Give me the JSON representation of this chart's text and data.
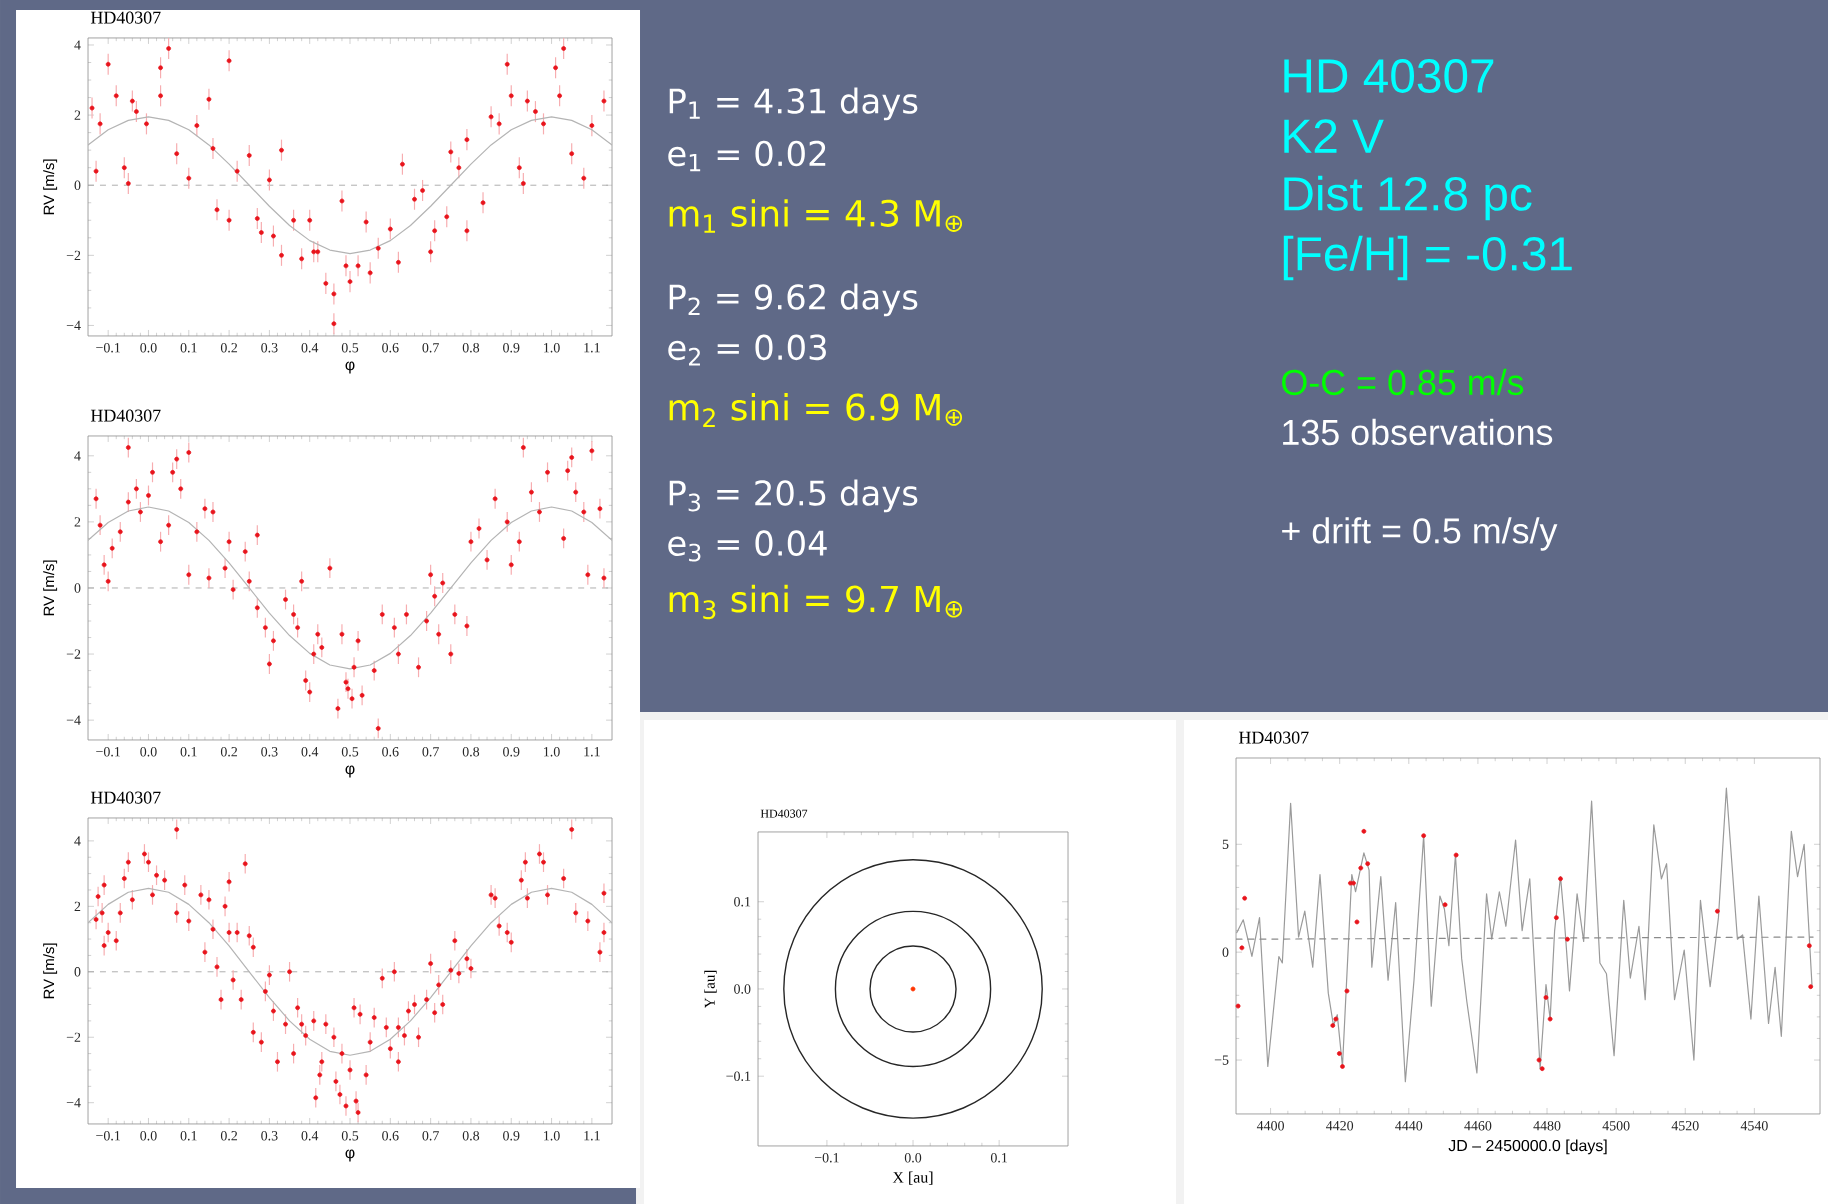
{
  "chart_data": [
    {
      "type": "scatter",
      "title": "HD40307",
      "xlabel": "φ",
      "ylabel": "RV [m/s]",
      "xlim": [
        -0.15,
        1.15
      ],
      "ylim": [
        -4.3,
        4.2
      ],
      "xticks": [
        {
          "value": -0.1,
          "label": "−0.1"
        },
        {
          "value": 0,
          "label": "0.0"
        },
        {
          "value": 0.1,
          "label": "0.1"
        },
        {
          "value": 0.2,
          "label": "0.2"
        },
        {
          "value": 0.3,
          "label": "0.3"
        },
        {
          "value": 0.4,
          "label": "0.4"
        },
        {
          "value": 0.5,
          "label": "0.5"
        },
        {
          "value": 0.6,
          "label": "0.6"
        },
        {
          "value": 0.7,
          "label": "0.7"
        },
        {
          "value": 0.8,
          "label": "0.8"
        },
        {
          "value": 0.9,
          "label": "0.9"
        },
        {
          "value": 1.0,
          "label": "1.0"
        },
        {
          "value": 1.1,
          "label": "1.1"
        }
      ],
      "yticks": [
        {
          "value": -4,
          "label": "−4"
        },
        {
          "value": -2,
          "label": "−2"
        },
        0,
        2,
        4
      ],
      "ref_lines": [
        {
          "axis": "y",
          "value": 0,
          "color": "#999999",
          "line_style": "dashed"
        }
      ],
      "series": [
        {
          "type": "scatter",
          "marker": "circle",
          "color": "#e8141c",
          "x": [
            -0.14,
            -0.13,
            -0.12,
            -0.1,
            -0.08,
            -0.06,
            -0.05,
            -0.04,
            -0.03,
            -0.005,
            0.03,
            0.03,
            0.05,
            0.07,
            0.1,
            0.12,
            0.15,
            0.16,
            0.17,
            0.2,
            0.2,
            0.22,
            0.25,
            0.27,
            0.28,
            0.3,
            0.31,
            0.33,
            0.33,
            0.36,
            0.38,
            0.4,
            0.41,
            0.42,
            0.44,
            0.46,
            0.46,
            0.48,
            0.49,
            0.5,
            0.52,
            0.54,
            0.55,
            0.57,
            0.6,
            0.62,
            0.63,
            0.66,
            0.68,
            0.7,
            0.71,
            0.74,
            0.75,
            0.77,
            0.79,
            0.79,
            0.83,
            0.85,
            0.87,
            0.89,
            0.9,
            0.92,
            0.93,
            0.94,
            0.96,
            0.98,
            1.01,
            1.02,
            1.03,
            1.05,
            1.08,
            1.1,
            1.13
          ],
          "values": [
            2.2,
            0.4,
            1.75,
            3.45,
            2.55,
            0.5,
            0.05,
            2.4,
            2.1,
            1.75,
            3.35,
            2.55,
            3.9,
            0.9,
            0.2,
            1.7,
            2.45,
            1.05,
            -0.7,
            3.55,
            -1.0,
            0.4,
            0.85,
            -0.95,
            -1.35,
            0.15,
            -1.45,
            -2.0,
            1.0,
            -1.0,
            -2.1,
            -1.0,
            -1.9,
            -1.9,
            -2.8,
            -3.1,
            -3.95,
            -0.45,
            -2.3,
            -2.75,
            -2.3,
            -1.05,
            -2.5,
            -1.8,
            -1.25,
            -2.2,
            0.6,
            -0.4,
            -0.15,
            -1.9,
            -1.3,
            -0.9,
            0.95,
            0.5,
            -1.3,
            1.3,
            -0.5,
            1.95,
            1.75,
            3.45,
            2.55,
            0.5,
            0.05,
            2.4,
            2.1,
            1.75,
            3.35,
            2.55,
            3.9,
            0.9,
            0.2,
            1.7,
            2.4
          ],
          "errors": [
            0.3,
            0.3,
            0.3,
            0.3,
            0.3,
            0.3,
            0.3,
            0.3,
            0.3,
            0.3,
            0.3,
            0.3,
            0.3,
            0.3,
            0.3,
            0.3,
            0.3,
            0.3,
            0.3,
            0.3,
            0.3,
            0.3,
            0.3,
            0.3,
            0.3,
            0.3,
            0.3,
            0.3,
            0.3,
            0.3,
            0.3,
            0.3,
            0.3,
            0.3,
            0.3,
            0.3,
            0.3,
            0.3,
            0.3,
            0.3,
            0.3,
            0.3,
            0.3,
            0.3,
            0.3,
            0.3,
            0.3,
            0.3,
            0.3,
            0.3,
            0.3,
            0.3,
            0.3,
            0.3,
            0.3,
            0.3,
            0.3,
            0.3,
            0.3,
            0.3,
            0.3,
            0.3,
            0.3,
            0.3,
            0.3,
            0.3,
            0.3,
            0.3,
            0.3,
            0.3,
            0.3,
            0.3,
            0.3
          ]
        },
        {
          "type": "line",
          "marker": "none",
          "color": "#b4b4b4",
          "x": [
            -0.15,
            -0.1,
            -0.05,
            0,
            0.05,
            0.1,
            0.15,
            0.2,
            0.25,
            0.3,
            0.35,
            0.4,
            0.45,
            0.5,
            0.55,
            0.6,
            0.65,
            0.7,
            0.75,
            0.8,
            0.85,
            0.9,
            0.95,
            1.0,
            1.05,
            1.1,
            1.15
          ],
          "values": [
            1.15,
            1.58,
            1.85,
            1.95,
            1.85,
            1.58,
            1.15,
            0.6,
            0,
            -0.6,
            -1.15,
            -1.58,
            -1.85,
            -1.95,
            -1.85,
            -1.58,
            -1.15,
            -0.6,
            0,
            0.6,
            1.15,
            1.58,
            1.85,
            1.95,
            1.85,
            1.58,
            1.15
          ]
        }
      ]
    },
    {
      "type": "scatter",
      "title": "HD40307",
      "xlabel": "φ",
      "ylabel": "RV [m/s]",
      "xlim": [
        -0.15,
        1.15
      ],
      "ylim": [
        -4.6,
        4.6
      ],
      "xticks": [
        {
          "value": -0.1,
          "label": "−0.1"
        },
        {
          "value": 0,
          "label": "0.0"
        },
        {
          "value": 0.1,
          "label": "0.1"
        },
        {
          "value": 0.2,
          "label": "0.2"
        },
        {
          "value": 0.3,
          "label": "0.3"
        },
        {
          "value": 0.4,
          "label": "0.4"
        },
        {
          "value": 0.5,
          "label": "0.5"
        },
        {
          "value": 0.6,
          "label": "0.6"
        },
        {
          "value": 0.7,
          "label": "0.7"
        },
        {
          "value": 0.8,
          "label": "0.8"
        },
        {
          "value": 0.9,
          "label": "0.9"
        },
        {
          "value": 1.0,
          "label": "1.0"
        },
        {
          "value": 1.1,
          "label": "1.1"
        }
      ],
      "yticks": [
        {
          "value": -4,
          "label": "−4"
        },
        {
          "value": -2,
          "label": "−2"
        },
        0,
        2,
        4
      ],
      "ref_lines": [
        {
          "axis": "y",
          "value": 0,
          "color": "#999999",
          "line_style": "dashed"
        }
      ],
      "series": [
        {
          "type": "scatter",
          "marker": "circle",
          "color": "#e8141c",
          "x": [
            -0.13,
            -0.12,
            -0.11,
            -0.1,
            -0.09,
            -0.07,
            -0.05,
            -0.05,
            -0.03,
            -0.02,
            0.0,
            0.01,
            0.03,
            0.05,
            0.06,
            0.07,
            0.08,
            0.1,
            0.1,
            0.12,
            0.14,
            0.15,
            0.16,
            0.19,
            0.2,
            0.21,
            0.24,
            0.25,
            0.27,
            0.27,
            0.29,
            0.3,
            0.31,
            0.34,
            0.36,
            0.37,
            0.38,
            0.39,
            0.4,
            0.41,
            0.42,
            0.43,
            0.45,
            0.47,
            0.48,
            0.49,
            0.495,
            0.505,
            0.51,
            0.52,
            0.53,
            0.56,
            0.57,
            0.58,
            0.61,
            0.62,
            0.64,
            0.67,
            0.69,
            0.7,
            0.71,
            0.72,
            0.73,
            0.75,
            0.76,
            0.79,
            0.8,
            0.82,
            0.84,
            0.86,
            0.89,
            0.9,
            0.92,
            0.93,
            0.95,
            0.97,
            0.99,
            1.03,
            1.04,
            1.05,
            1.06,
            1.08,
            1.09,
            1.1,
            1.12,
            1.13
          ],
          "values": [
            2.7,
            1.9,
            0.7,
            0.2,
            1.2,
            1.7,
            4.25,
            2.6,
            3.0,
            2.3,
            2.8,
            3.5,
            1.4,
            1.9,
            3.5,
            3.9,
            3.0,
            0.4,
            4.1,
            1.7,
            2.4,
            0.3,
            2.3,
            0.6,
            1.4,
            -0.05,
            1.1,
            0.2,
            -0.6,
            1.6,
            -1.2,
            -2.3,
            -1.6,
            -0.35,
            -0.8,
            -1.2,
            0.2,
            -2.8,
            -3.15,
            -2.0,
            -1.4,
            -1.8,
            0.6,
            -3.65,
            -1.4,
            -2.85,
            -3.05,
            -3.35,
            -2.4,
            -1.6,
            -3.25,
            -2.5,
            -4.25,
            -0.8,
            -1.2,
            -2.0,
            -0.8,
            -2.4,
            -1.0,
            0.4,
            -0.25,
            -1.4,
            0.15,
            -2.0,
            -0.8,
            -1.15,
            1.4,
            1.8,
            0.85,
            2.7,
            2.0,
            0.7,
            1.4,
            4.25,
            2.9,
            2.3,
            3.5,
            1.5,
            3.55,
            3.95,
            2.9,
            2.3,
            0.4,
            4.15,
            2.4,
            0.3
          ],
          "errors": [
            0.3,
            0.3,
            0.3,
            0.3,
            0.3,
            0.3,
            0.3,
            0.3,
            0.3,
            0.3,
            0.3,
            0.3,
            0.3,
            0.3,
            0.3,
            0.3,
            0.3,
            0.3,
            0.3,
            0.3,
            0.3,
            0.3,
            0.3,
            0.3,
            0.3,
            0.3,
            0.3,
            0.3,
            0.3,
            0.3,
            0.3,
            0.3,
            0.3,
            0.3,
            0.3,
            0.3,
            0.3,
            0.3,
            0.3,
            0.3,
            0.3,
            0.3,
            0.3,
            0.3,
            0.3,
            0.3,
            0.3,
            0.3,
            0.3,
            0.3,
            0.3,
            0.3,
            0.3,
            0.3,
            0.3,
            0.3,
            0.3,
            0.3,
            0.3,
            0.3,
            0.3,
            0.3,
            0.3,
            0.3,
            0.3,
            0.3,
            0.3,
            0.3,
            0.3,
            0.3,
            0.3,
            0.3,
            0.3,
            0.3,
            0.3,
            0.3,
            0.3,
            0.3,
            0.3,
            0.3,
            0.3,
            0.3,
            0.3,
            0.3,
            0.3,
            0.3
          ]
        },
        {
          "type": "line",
          "marker": "none",
          "color": "#b4b4b4",
          "x": [
            -0.15,
            -0.1,
            -0.05,
            0,
            0.05,
            0.1,
            0.15,
            0.2,
            0.25,
            0.3,
            0.35,
            0.4,
            0.45,
            0.5,
            0.55,
            0.6,
            0.65,
            0.7,
            0.75,
            0.8,
            0.85,
            0.9,
            0.95,
            1.0,
            1.05,
            1.1,
            1.15
          ],
          "values": [
            1.44,
            1.98,
            2.33,
            2.45,
            2.33,
            1.98,
            1.44,
            0.76,
            0,
            -0.76,
            -1.44,
            -1.98,
            -2.33,
            -2.45,
            -2.33,
            -1.98,
            -1.44,
            -0.76,
            0,
            0.76,
            1.44,
            1.98,
            2.33,
            2.45,
            2.33,
            1.98,
            1.44
          ]
        }
      ]
    },
    {
      "type": "scatter",
      "title": "HD40307",
      "xlabel": "φ",
      "ylabel": "RV [m/s]",
      "xlim": [
        -0.15,
        1.15
      ],
      "ylim": [
        -4.65,
        4.7
      ],
      "xticks": [
        {
          "value": -0.1,
          "label": "−0.1"
        },
        {
          "value": 0,
          "label": "0.0"
        },
        {
          "value": 0.1,
          "label": "0.1"
        },
        {
          "value": 0.2,
          "label": "0.2"
        },
        {
          "value": 0.3,
          "label": "0.3"
        },
        {
          "value": 0.4,
          "label": "0.4"
        },
        {
          "value": 0.5,
          "label": "0.5"
        },
        {
          "value": 0.6,
          "label": "0.6"
        },
        {
          "value": 0.7,
          "label": "0.7"
        },
        {
          "value": 0.8,
          "label": "0.8"
        },
        {
          "value": 0.9,
          "label": "0.9"
        },
        {
          "value": 1.0,
          "label": "1.0"
        },
        {
          "value": 1.1,
          "label": "1.1"
        }
      ],
      "yticks": [
        {
          "value": -4,
          "label": "−4"
        },
        {
          "value": -2,
          "label": "−2"
        },
        0,
        2,
        4
      ],
      "ref_lines": [
        {
          "axis": "y",
          "value": 0,
          "color": "#999999",
          "line_style": "dashed"
        }
      ],
      "series": [
        {
          "type": "scatter",
          "marker": "circle",
          "color": "#e8141c",
          "x": [
            -0.13,
            -0.125,
            -0.115,
            -0.11,
            -0.11,
            -0.1,
            -0.08,
            -0.07,
            -0.06,
            -0.05,
            -0.04,
            -0.01,
            0.0,
            0.01,
            0.02,
            0.04,
            0.07,
            0.07,
            0.09,
            0.1,
            0.13,
            0.14,
            0.15,
            0.16,
            0.17,
            0.18,
            0.19,
            0.2,
            0.2,
            0.21,
            0.22,
            0.23,
            0.24,
            0.25,
            0.26,
            0.26,
            0.28,
            0.29,
            0.3,
            0.31,
            0.32,
            0.34,
            0.35,
            0.36,
            0.37,
            0.38,
            0.39,
            0.41,
            0.415,
            0.425,
            0.43,
            0.44,
            0.46,
            0.465,
            0.475,
            0.48,
            0.49,
            0.5,
            0.51,
            0.515,
            0.52,
            0.525,
            0.54,
            0.55,
            0.56,
            0.58,
            0.59,
            0.6,
            0.61,
            0.62,
            0.62,
            0.635,
            0.645,
            0.66,
            0.67,
            0.69,
            0.7,
            0.71,
            0.72,
            0.73,
            0.75,
            0.76,
            0.77,
            0.79,
            0.8,
            0.85,
            0.86,
            0.87,
            0.89,
            0.9,
            0.925,
            0.935,
            0.94,
            0.97,
            0.98,
            0.99,
            1.03,
            1.05,
            1.06,
            1.09,
            1.12,
            1.13,
            1.13
          ],
          "values": [
            1.6,
            2.3,
            1.8,
            2.65,
            0.8,
            1.2,
            0.95,
            1.8,
            2.85,
            3.35,
            2.2,
            3.6,
            3.35,
            2.35,
            2.95,
            2.8,
            4.35,
            1.8,
            2.65,
            1.55,
            2.35,
            0.6,
            2.2,
            1.3,
            0.15,
            -0.85,
            2.0,
            1.2,
            2.75,
            -0.25,
            1.2,
            -0.85,
            3.3,
            1.1,
            0.75,
            -1.85,
            -2.15,
            -0.6,
            -0.1,
            -1.2,
            -2.75,
            -1.6,
            0.0,
            -2.5,
            -1.1,
            -1.6,
            -1.95,
            -1.5,
            -3.85,
            -3.15,
            -2.75,
            -1.6,
            -2.0,
            -3.35,
            -3.75,
            -2.5,
            -4.1,
            -3.0,
            -1.1,
            -3.95,
            -4.3,
            -1.3,
            -3.15,
            -2.15,
            -1.4,
            -0.2,
            -1.7,
            -2.35,
            0.0,
            -2.75,
            -1.7,
            -1.95,
            -1.2,
            -1.0,
            -2.0,
            -0.85,
            0.25,
            -1.25,
            -0.4,
            -1.0,
            0.05,
            0.95,
            -0.05,
            0.4,
            0.1,
            2.35,
            2.25,
            1.4,
            1.2,
            0.9,
            2.8,
            3.35,
            2.25,
            3.6,
            3.35,
            2.35,
            2.85,
            4.35,
            1.8,
            1.55,
            0.6,
            2.4,
            1.2
          ],
          "errors": [
            0.3,
            0.3,
            0.3,
            0.3,
            0.3,
            0.3,
            0.3,
            0.3,
            0.3,
            0.3,
            0.3,
            0.3,
            0.3,
            0.3,
            0.3,
            0.3,
            0.3,
            0.3,
            0.3,
            0.3,
            0.3,
            0.3,
            0.3,
            0.3,
            0.3,
            0.3,
            0.3,
            0.3,
            0.3,
            0.3,
            0.3,
            0.3,
            0.3,
            0.3,
            0.3,
            0.3,
            0.3,
            0.3,
            0.3,
            0.3,
            0.3,
            0.3,
            0.3,
            0.3,
            0.3,
            0.3,
            0.3,
            0.3,
            0.3,
            0.3,
            0.3,
            0.3,
            0.3,
            0.3,
            0.3,
            0.3,
            0.3,
            0.3,
            0.3,
            0.3,
            0.3,
            0.3,
            0.3,
            0.3,
            0.3,
            0.3,
            0.3,
            0.3,
            0.3,
            0.3,
            0.3,
            0.3,
            0.3,
            0.3,
            0.3,
            0.3,
            0.3,
            0.3,
            0.3,
            0.3,
            0.3,
            0.3,
            0.3,
            0.3,
            0.3,
            0.3,
            0.3,
            0.3,
            0.3,
            0.3,
            0.3,
            0.3,
            0.3,
            0.3,
            0.3,
            0.3,
            0.3,
            0.3,
            0.3,
            0.3,
            0.3,
            0.3,
            0.3
          ]
        },
        {
          "type": "line",
          "marker": "none",
          "color": "#b4b4b4",
          "x": [
            -0.15,
            -0.1,
            -0.05,
            0,
            0.05,
            0.1,
            0.15,
            0.2,
            0.25,
            0.3,
            0.35,
            0.4,
            0.45,
            0.5,
            0.55,
            0.6,
            0.65,
            0.7,
            0.75,
            0.8,
            0.85,
            0.9,
            0.95,
            1.0,
            1.05,
            1.1,
            1.15
          ],
          "values": [
            1.5,
            2.06,
            2.43,
            2.55,
            2.43,
            2.06,
            1.5,
            0.79,
            0,
            -0.79,
            -1.5,
            -2.06,
            -2.43,
            -2.55,
            -2.43,
            -2.06,
            -1.5,
            -0.79,
            0,
            0.79,
            1.5,
            2.06,
            2.43,
            2.55,
            2.43,
            2.06,
            1.5
          ]
        }
      ]
    },
    {
      "type": "line",
      "title": "HD40307",
      "xlabel": "X [au]",
      "ylabel": "Y [au]",
      "xlim": [
        -0.18,
        0.18
      ],
      "ylim": [
        -0.18,
        0.18
      ],
      "xticks": [
        {
          "value": -0.1,
          "label": "−0.1"
        },
        {
          "value": 0,
          "label": "0.0"
        },
        {
          "value": 0.1,
          "label": "0.1"
        }
      ],
      "yticks": [
        {
          "value": -0.1,
          "label": "−0.1"
        },
        {
          "value": 0,
          "label": "0.0"
        },
        {
          "value": 0.1,
          "label": "0.1"
        }
      ],
      "series": [
        {
          "type": "scatter",
          "marker": "circle",
          "color": "#ff3300",
          "x": [
            0
          ],
          "values": [
            0
          ]
        }
      ]
    },
    {
      "type": "line",
      "title": "HD40307",
      "xlabel": "JD – 2450000.0 [days]",
      "xlim": [
        4390,
        4559
      ],
      "ylim": [
        -7.5,
        9
      ],
      "xticks": [
        4400,
        4420,
        4440,
        4460,
        4480,
        4500,
        4520,
        4540
      ],
      "yticks": [
        {
          "value": -5,
          "label": "−5"
        },
        0,
        5
      ],
      "series": [
        {
          "type": "line",
          "marker": "none",
          "color": "#9a9a9a",
          "x": [
            4390.2,
            4392.1,
            4394.6,
            4396.8,
            4399.2,
            4402.4,
            4403.4,
            4405.8,
            4408.1,
            4409.9,
            4412.2,
            4414.3,
            4416.7,
            4418.2,
            4419.3,
            4420.8,
            4423.5,
            4424.6,
            4427.0,
            4428.5,
            4429.3,
            4431.9,
            4434.0,
            4436.2,
            4439.0,
            4441.5,
            4444.3,
            4446.5,
            4449.0,
            4450.3,
            4451.6,
            4453.5,
            4455.3,
            4456.8,
            4459.7,
            4462.5,
            4464.0,
            4466.2,
            4468.1,
            4470.9,
            4472.8,
            4475.0,
            4478.0,
            4479.7,
            4480.9,
            4482.2,
            4483.9,
            4485.0,
            4486.5,
            4488.7,
            4490.6,
            4492.9,
            4495.3,
            4497.2,
            4499.4,
            4502.2,
            4504.1,
            4506.6,
            4508.4,
            4510.9,
            4513.1,
            4514.6,
            4516.9,
            4519.7,
            4522.5,
            4524.4,
            4527.2,
            4529.6,
            4531.9,
            4535.1,
            4536.6,
            4539.0,
            4541.3,
            4544.1,
            4546.0,
            4547.8,
            4550.7,
            4552.5,
            4554.4,
            4556.7
          ],
          "values": [
            0.9,
            1.5,
            -0.2,
            1.6,
            -5.3,
            -0.2,
            -0.5,
            6.9,
            0.7,
            1.9,
            -0.7,
            3.6,
            -1.9,
            -3.4,
            -2.9,
            -5.3,
            3.6,
            2.8,
            4.6,
            3.8,
            -0.7,
            3.5,
            -1.3,
            2.3,
            -6.0,
            -1.3,
            5.4,
            -2.5,
            2.6,
            2.0,
            0.3,
            4.5,
            -0.3,
            -2.3,
            -5.6,
            2.7,
            0.6,
            2.8,
            1.2,
            5.2,
            1.0,
            3.4,
            -5.4,
            -1.5,
            -3.1,
            1.0,
            3.5,
            1.5,
            -1.8,
            2.7,
            0.5,
            7.0,
            -0.5,
            -1.0,
            -4.8,
            2.4,
            -1.2,
            1.2,
            -2.2,
            5.9,
            3.4,
            4.1,
            -2.2,
            0.1,
            -5.0,
            2.4,
            -1.6,
            1.6,
            7.6,
            0.6,
            0.8,
            -3.1,
            2.6,
            -3.3,
            -0.7,
            -3.9,
            5.6,
            3.5,
            5.0,
            -1.6
          ]
        },
        {
          "type": "line",
          "marker": "none",
          "line_style": "dashed",
          "color": "#8a8a8a",
          "x": [
            4390,
            4557
          ],
          "values": [
            0.6,
            0.7
          ]
        },
        {
          "type": "scatter",
          "marker": "circle",
          "color": "#e8141c",
          "x": [
            4390.6,
            4391.7,
            4392.5,
            4418.0,
            4418.9,
            4419.9,
            4420.8,
            4422.1,
            4423.1,
            4424.0,
            4425.0,
            4426.1,
            4427.0,
            4428.1,
            4444.3,
            4450.5,
            4453.7,
            4477.7,
            4478.6,
            4479.7,
            4480.9,
            4482.7,
            4483.9,
            4485.9,
            4529.3,
            4555.9,
            4556.3
          ],
          "values": [
            -2.5,
            0.2,
            2.5,
            -3.4,
            -3.1,
            -4.7,
            -5.3,
            -1.8,
            3.2,
            3.2,
            1.4,
            3.9,
            5.6,
            4.1,
            5.4,
            2.2,
            4.5,
            -5.0,
            -5.4,
            -2.1,
            -3.1,
            1.6,
            3.4,
            0.6,
            1.9,
            0.3,
            -1.6
          ]
        }
      ]
    },
    {
      "type": "other",
      "annotations": [
        "P$_{1}$ = 4.31 days",
        "e$_{1}$ = 0.02",
        "m$_{1}$ sini = 4.3 M$_{⊕}$",
        "P$_{2}$ = 9.62 days",
        "e$_{2}$ = 0.03",
        "m$_{2}$ sini = 6.9 M$_{⊕}$",
        "P$_{3}$ = 20.5 days",
        "e$_{3}$ = 0.04",
        "m$_{3}$ sini = 9.7 M$_{⊕}$",
        "HD 40307",
        "K2 V",
        "Dist 12.8 pc",
        "[Fe/H] = -0.31",
        "O-C = 0.85 m/s",
        "135 observations",
        "+ drift = 0.5 m/s/y"
      ]
    }
  ]
}
